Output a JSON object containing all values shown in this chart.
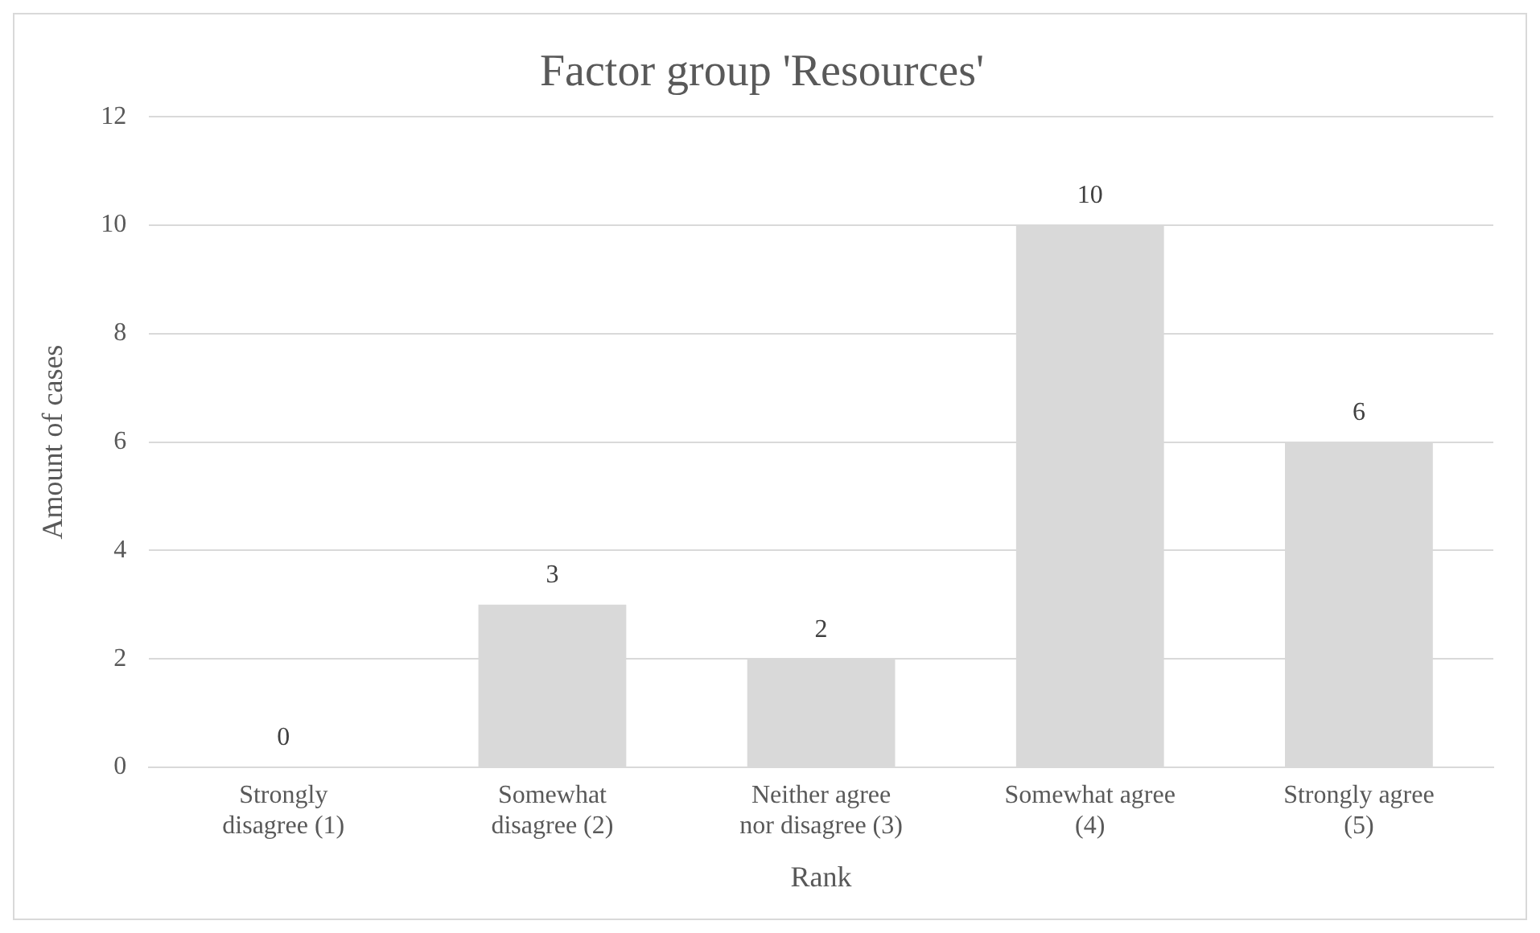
{
  "chart_data": {
    "type": "bar",
    "title": "Factor group 'Resources'",
    "xlabel": "Rank",
    "ylabel": "Amount of cases",
    "categories": [
      "Strongly disagree (1)",
      "Somewhat disagree (2)",
      "Neither agree nor disagree (3)",
      "Somewhat agree (4)",
      "Strongly agree (5)"
    ],
    "values": [
      0,
      3,
      2,
      10,
      6
    ],
    "color": "#d9d9d9",
    "ylim": [
      0,
      12
    ],
    "yticks": [
      0,
      2,
      4,
      6,
      8,
      10,
      12
    ],
    "grid": "y",
    "data_labels": true,
    "legend": false
  }
}
